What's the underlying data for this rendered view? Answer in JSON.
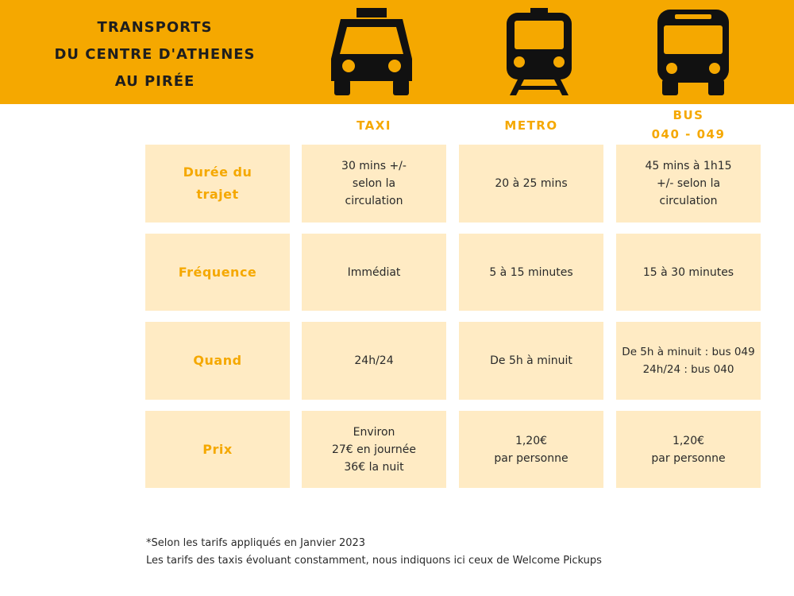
{
  "header": {
    "title_lines": [
      "TRANSPORTS",
      "DU CENTRE D'ATHENES",
      "AU PIRÉE"
    ],
    "icons": [
      "taxi-icon",
      "metro-icon",
      "bus-icon"
    ],
    "background_color": "#F5A800"
  },
  "columns": {
    "taxi": {
      "label": "TAXI"
    },
    "metro": {
      "label": "METRO"
    },
    "bus": {
      "label_lines": [
        "BUS",
        "040 - 049"
      ]
    }
  },
  "rows": [
    {
      "label_lines": [
        "Durée du",
        "trajet"
      ],
      "taxi": [
        "30 mins +/-",
        "selon la",
        "circulation"
      ],
      "metro": [
        "20 à 25 mins"
      ],
      "bus": [
        "45 mins à 1h15",
        "+/- selon la",
        "circulation"
      ]
    },
    {
      "label_lines": [
        "Fréquence"
      ],
      "taxi": [
        "Immédiat"
      ],
      "metro": [
        "5 à 15 minutes"
      ],
      "bus": [
        "15 à 30 minutes"
      ]
    },
    {
      "label_lines": [
        "Quand"
      ],
      "taxi": [
        "24h/24"
      ],
      "metro": [
        "De 5h à minuit"
      ],
      "bus": [
        "De 5h à minuit : bus 049",
        "24h/24 : bus 040"
      ]
    },
    {
      "label_lines": [
        "Prix"
      ],
      "taxi": [
        "Environ",
        "27€ en journée",
        "36€ la nuit"
      ],
      "metro": [
        "1,20€",
        "par personne"
      ],
      "bus": [
        "1,20€",
        "par personne"
      ]
    }
  ],
  "footnote": {
    "lines": [
      "*Selon les tarifs appliqués en Janvier 2023",
      "Les tarifs des taxis évoluant constamment, nous indiquons ici ceux de Welcome Pickups"
    ]
  },
  "colors": {
    "accent": "#F5A800",
    "cell_background": "#FFEBC4",
    "text": "#2a2a2a",
    "icon": "#111111"
  }
}
